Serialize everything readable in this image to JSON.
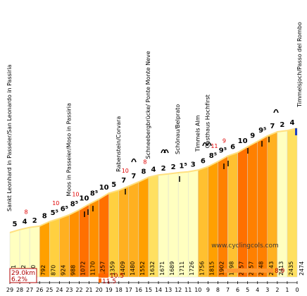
{
  "chart_data": {
    "type": "area",
    "title": "",
    "xlabel": "",
    "ylabel": "",
    "x_axis": "km to summit (decreasing)",
    "km_ticks": [
      "29",
      "28",
      "27",
      "26",
      "25",
      "24",
      "23",
      "22",
      "21",
      "20",
      "19",
      "18",
      "17",
      "16",
      "15",
      "14",
      "13",
      "12",
      "11",
      "10",
      "9",
      "8",
      "7",
      "6",
      "5",
      "4",
      "3",
      "2",
      "1",
      "0"
    ],
    "segments": [
      {
        "km": 29,
        "altitude": "681",
        "grade": "5",
        "color": "#ffffc0"
      },
      {
        "km": 28,
        "altitude": "732",
        "grade": "4",
        "color": "#ffffc0"
      },
      {
        "km": 27,
        "altitude": "770",
        "grade": "2",
        "color": "#ffffc0"
      },
      {
        "km": 26,
        "altitude": "792",
        "grade": "8",
        "color": "#ffa000"
      },
      {
        "km": 25,
        "altitude": "870",
        "grade": "5⁵",
        "color": "#ffd040"
      },
      {
        "km": 24,
        "altitude": "924",
        "grade": "6⁵",
        "color": "#ffb020"
      },
      {
        "km": 23,
        "altitude": "988",
        "grade": "8⁵",
        "color": "#ff9000"
      },
      {
        "km": 22,
        "altitude": "1072",
        "grade": "10",
        "color": "#ff7000"
      },
      {
        "km": 21,
        "altitude": "1170",
        "grade": "8⁵",
        "color": "#ff9000"
      },
      {
        "km": 20,
        "altitude": "1257",
        "grade": "10",
        "color": "#ff7000"
      },
      {
        "km": 19,
        "altitude": "1359",
        "grade": "5",
        "color": "#ffd040"
      },
      {
        "km": 18,
        "altitude": "1409",
        "grade": "7",
        "color": "#ffb020"
      },
      {
        "km": 17,
        "altitude": "1480",
        "grade": "7",
        "color": "#ffb020"
      },
      {
        "km": 16,
        "altitude": "1552",
        "grade": "8",
        "color": "#ffa000"
      },
      {
        "km": 15,
        "altitude": "1632",
        "grade": "4",
        "color": "#ffe060"
      },
      {
        "km": 14,
        "altitude": "1671",
        "grade": "2",
        "color": "#ffffc0"
      },
      {
        "km": 13,
        "altitude": "1689",
        "grade": "2",
        "color": "#ffffc0"
      },
      {
        "km": 12,
        "altitude": "1711",
        "grade": "1⁵",
        "color": "#ffffc0"
      },
      {
        "km": 11,
        "altitude": "1726",
        "grade": "3",
        "color": "#ffffc0"
      },
      {
        "km": 10,
        "altitude": "1756",
        "grade": "6",
        "color": "#ffc030"
      },
      {
        "km": 9,
        "altitude": "1815",
        "grade": "8⁵",
        "color": "#ffa000"
      },
      {
        "km": 8,
        "altitude": "1902",
        "grade": "9⁵",
        "color": "#ff8000"
      },
      {
        "km": 7,
        "altitude": "1998",
        "grade": "6",
        "color": "#ffc030"
      },
      {
        "km": 6,
        "altitude": "2057",
        "grade": "10",
        "color": "#ff7000"
      },
      {
        "km": 5,
        "altitude": "2157",
        "grade": "9",
        "color": "#ff8000"
      },
      {
        "km": 4,
        "altitude": "2248",
        "grade": "9⁵",
        "color": "#ff8000"
      },
      {
        "km": 3,
        "altitude": "2343",
        "grade": "7",
        "color": "#ffb020"
      },
      {
        "km": 2,
        "altitude": "2413",
        "grade": "2",
        "color": "#ffffc0"
      },
      {
        "km": 1,
        "altitude": "2435",
        "grade": "4",
        "color": "#ffe060"
      }
    ],
    "summit_altitude": "2474",
    "red_max_grades": [
      {
        "km": 28,
        "value": "8"
      },
      {
        "km": 25,
        "value": "10"
      },
      {
        "km": 23,
        "value": "10"
      },
      {
        "km": 18,
        "value": "10"
      },
      {
        "km": 16,
        "value": "8"
      },
      {
        "km": 9,
        "value": "11"
      },
      {
        "km": 8,
        "value": "9"
      }
    ],
    "places": [
      {
        "km": 29,
        "name": "Sankt Leonhard in Passeier/San Leonardo in Passiria"
      },
      {
        "km": 23,
        "name": "Moos in Passeier/Moso in Passiria"
      },
      {
        "km": 18,
        "name": "Rabenstein/Corvara"
      },
      {
        "km": 15,
        "name": "Schneebergbrücke/ Ponte Monte Neve"
      },
      {
        "km": 12,
        "name": "Schönau/Belprato"
      },
      {
        "km": 10,
        "name": "Timmels Alm"
      },
      {
        "km": 9,
        "name": "Gasthaus Hochfirst"
      },
      {
        "km": 0,
        "name": "Timmelsjoch/Passo del Rombo"
      }
    ],
    "total": {
      "distance": "29.0km",
      "avg_grade": "6.2%"
    },
    "legend_bars": [
      {
        "label": "10.5",
        "color": "#ff6600"
      },
      {
        "label": "11.5",
        "color": "#ff6600"
      },
      {
        "label": "8.9",
        "color": "#ff9933"
      }
    ],
    "watermark": "www.cyclingcols.com"
  }
}
